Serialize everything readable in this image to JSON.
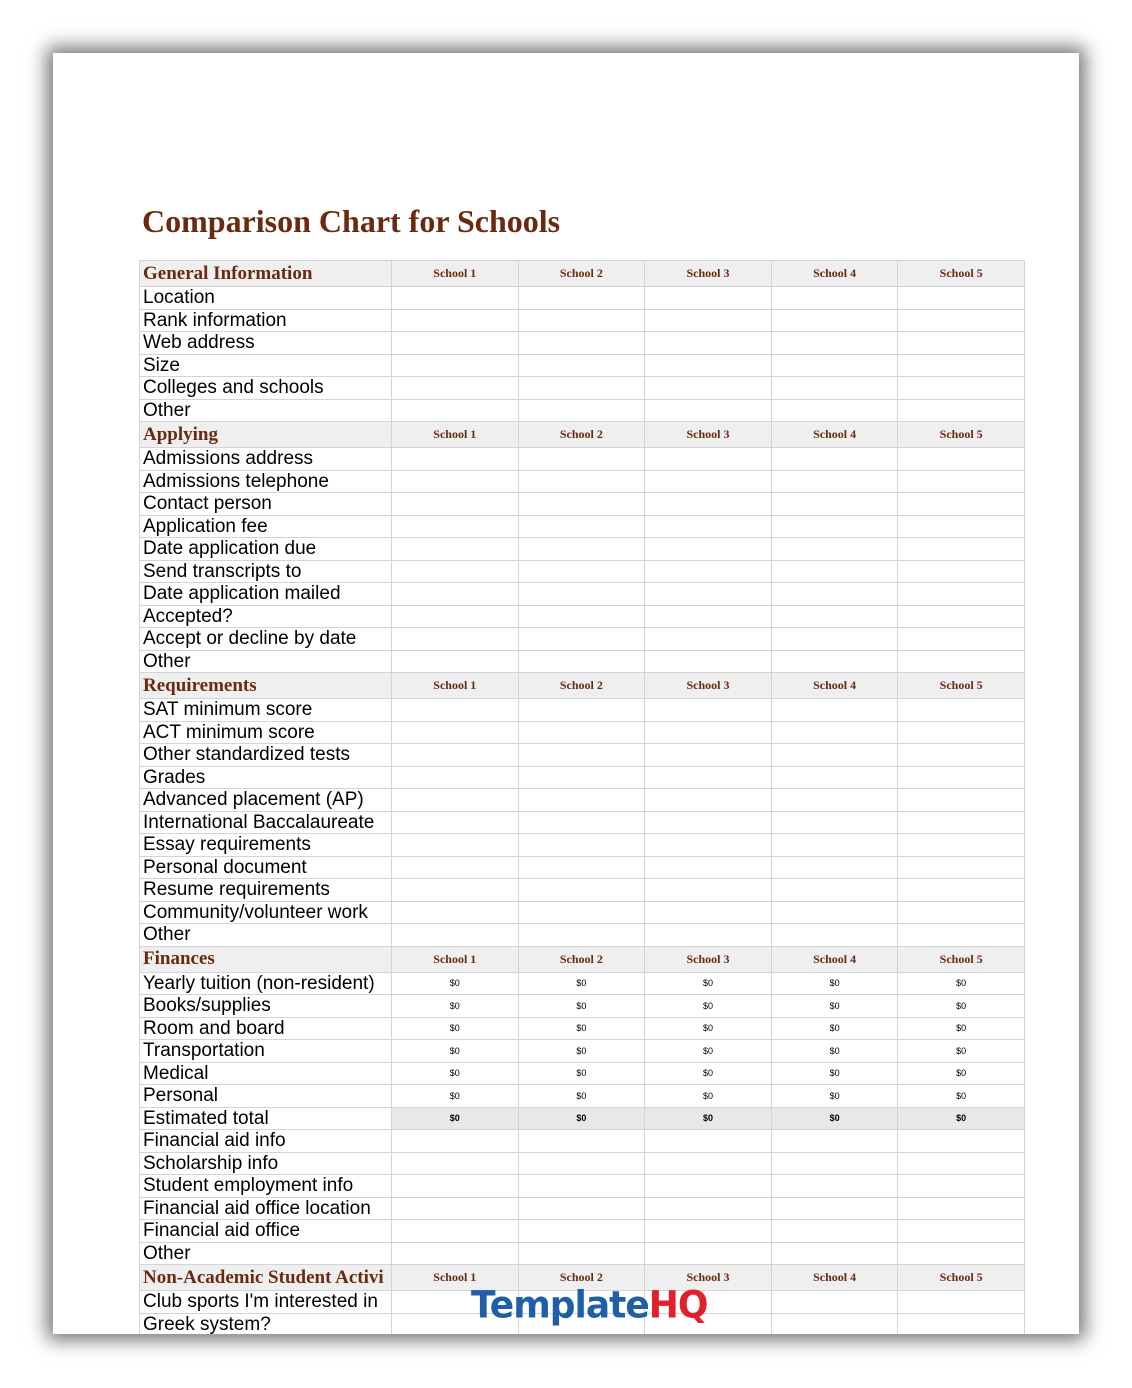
{
  "title": "Comparison Chart for Schools",
  "schools": [
    "School 1",
    "School 2",
    "School 3",
    "School 4",
    "School 5"
  ],
  "sections": [
    {
      "name": "General Information",
      "rows": [
        {
          "label": "Location"
        },
        {
          "label": "Rank information"
        },
        {
          "label": "Web address"
        },
        {
          "label": "Size"
        },
        {
          "label": "Colleges and schools"
        },
        {
          "label": "Other"
        }
      ]
    },
    {
      "name": "Applying",
      "rows": [
        {
          "label": "Admissions address"
        },
        {
          "label": "Admissions telephone"
        },
        {
          "label": "Contact person"
        },
        {
          "label": "Application fee"
        },
        {
          "label": "Date application due"
        },
        {
          "label": "Send transcripts to"
        },
        {
          "label": "Date application mailed"
        },
        {
          "label": "Accepted?"
        },
        {
          "label": "Accept or decline by date"
        },
        {
          "label": "Other"
        }
      ]
    },
    {
      "name": "Requirements",
      "rows": [
        {
          "label": "SAT minimum score"
        },
        {
          "label": "ACT minimum score"
        },
        {
          "label": "Other standardized tests"
        },
        {
          "label": "Grades"
        },
        {
          "label": "Advanced placement (AP)"
        },
        {
          "label": "International Baccalaureate"
        },
        {
          "label": "Essay requirements"
        },
        {
          "label": "Personal document"
        },
        {
          "label": "Resume requirements"
        },
        {
          "label": "Community/volunteer work"
        },
        {
          "label": "Other"
        }
      ]
    },
    {
      "name": "Finances",
      "rows": [
        {
          "label": "Yearly tuition (non-resident)",
          "values": [
            "$0",
            "$0",
            "$0",
            "$0",
            "$0"
          ]
        },
        {
          "label": "Books/supplies",
          "values": [
            "$0",
            "$0",
            "$0",
            "$0",
            "$0"
          ]
        },
        {
          "label": "Room and board",
          "values": [
            "$0",
            "$0",
            "$0",
            "$0",
            "$0"
          ]
        },
        {
          "label": "Transportation",
          "values": [
            "$0",
            "$0",
            "$0",
            "$0",
            "$0"
          ]
        },
        {
          "label": "Medical",
          "values": [
            "$0",
            "$0",
            "$0",
            "$0",
            "$0"
          ]
        },
        {
          "label": "Personal",
          "values": [
            "$0",
            "$0",
            "$0",
            "$0",
            "$0"
          ]
        },
        {
          "label": "Estimated total",
          "values": [
            "$0",
            "$0",
            "$0",
            "$0",
            "$0"
          ],
          "total": true
        },
        {
          "label": "Financial aid info"
        },
        {
          "label": "Scholarship info"
        },
        {
          "label": "Student employment info"
        },
        {
          "label": "Financial aid office location"
        },
        {
          "label": "Financial aid office"
        },
        {
          "label": "Other"
        }
      ]
    },
    {
      "name": "Non-Academic Student Activi",
      "rows": [
        {
          "label": "Club sports I'm interested in"
        },
        {
          "label": "Greek system?"
        },
        {
          "label": ""
        }
      ]
    }
  ],
  "watermark": {
    "part1": "Template",
    "part2": "HQ"
  }
}
